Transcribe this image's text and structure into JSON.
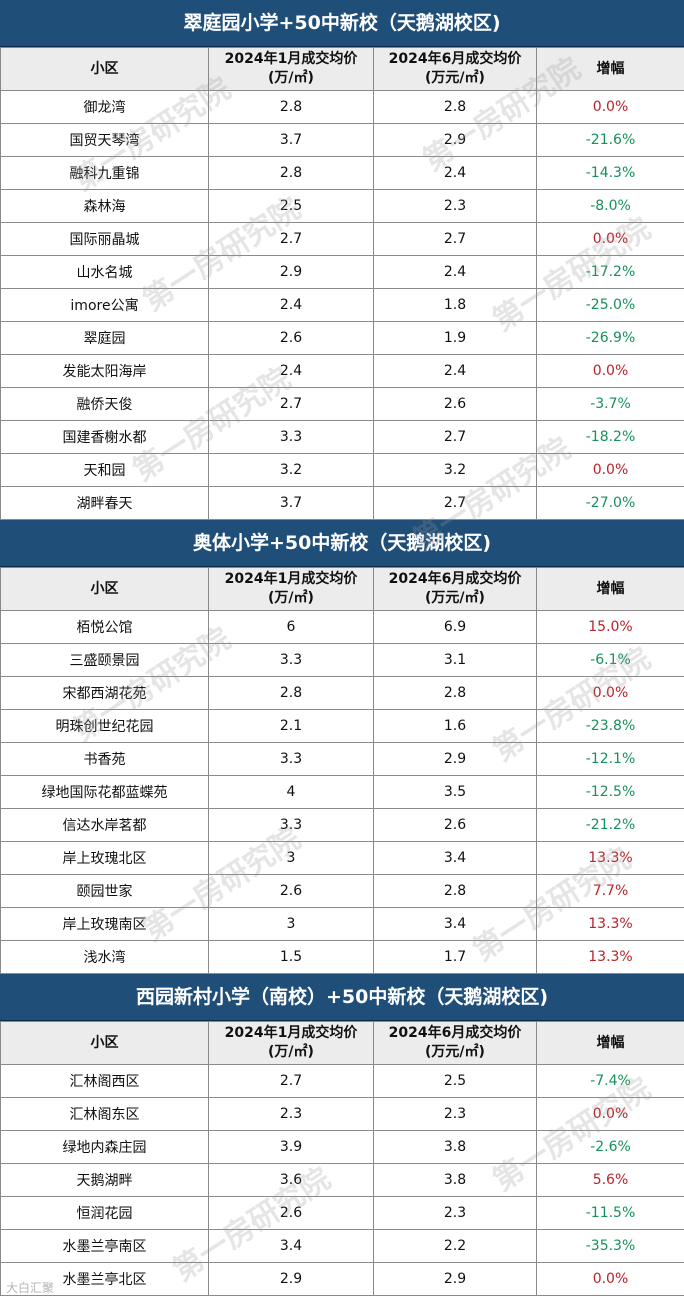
{
  "watermark": "第一房研究院",
  "brand": "大白汇聚",
  "headers": {
    "name": "小区",
    "jan_l1": "2024年1月成交均价",
    "jan_l2": "(万/㎡)",
    "jun_l1": "2024年6月成交均价",
    "jun_l2": "(万元/㎡)",
    "change": "增幅"
  },
  "sections": [
    {
      "title": "翠庭园小学+50中新校（天鹅湖校区)",
      "rows": [
        [
          "御龙湾",
          "2.8",
          "2.8",
          "0.0%"
        ],
        [
          "国贸天琴湾",
          "3.7",
          "2.9",
          "-21.6%"
        ],
        [
          "融科九重锦",
          "2.8",
          "2.4",
          "-14.3%"
        ],
        [
          "森林海",
          "2.5",
          "2.3",
          "-8.0%"
        ],
        [
          "国际丽晶城",
          "2.7",
          "2.7",
          "0.0%"
        ],
        [
          "山水名城",
          "2.9",
          "2.4",
          "-17.2%"
        ],
        [
          "imore公寓",
          "2.4",
          "1.8",
          "-25.0%"
        ],
        [
          "翠庭园",
          "2.6",
          "1.9",
          "-26.9%"
        ],
        [
          "发能太阳海岸",
          "2.4",
          "2.4",
          "0.0%"
        ],
        [
          "融侨天俊",
          "2.7",
          "2.6",
          "-3.7%"
        ],
        [
          "国建香榭水都",
          "3.3",
          "2.7",
          "-18.2%"
        ],
        [
          "天和园",
          "3.2",
          "3.2",
          "0.0%"
        ],
        [
          "湖畔春天",
          "3.7",
          "2.7",
          "-27.0%"
        ]
      ]
    },
    {
      "title": "奥体小学+50中新校（天鹅湖校区)",
      "rows": [
        [
          "栢悦公馆",
          "6",
          "6.9",
          "15.0%"
        ],
        [
          "三盛颐景园",
          "3.3",
          "3.1",
          "-6.1%"
        ],
        [
          "宋都西湖花苑",
          "2.8",
          "2.8",
          "0.0%"
        ],
        [
          "明珠创世纪花园",
          "2.1",
          "1.6",
          "-23.8%"
        ],
        [
          "书香苑",
          "3.3",
          "2.9",
          "-12.1%"
        ],
        [
          "绿地国际花都蓝蝶苑",
          "4",
          "3.5",
          "-12.5%"
        ],
        [
          "信达水岸茗都",
          "3.3",
          "2.6",
          "-21.2%"
        ],
        [
          "岸上玫瑰北区",
          "3",
          "3.4",
          "13.3%"
        ],
        [
          "颐园世家",
          "2.6",
          "2.8",
          "7.7%"
        ],
        [
          "岸上玫瑰南区",
          "3",
          "3.4",
          "13.3%"
        ],
        [
          "浅水湾",
          "1.5",
          "1.7",
          "13.3%"
        ]
      ]
    },
    {
      "title": "西园新村小学（南校）+50中新校（天鹅湖校区)",
      "rows": [
        [
          "汇林阁西区",
          "2.7",
          "2.5",
          "-7.4%"
        ],
        [
          "汇林阁东区",
          "2.3",
          "2.3",
          "0.0%"
        ],
        [
          "绿地内森庄园",
          "3.9",
          "3.8",
          "-2.6%"
        ],
        [
          "天鹅湖畔",
          "3.6",
          "3.8",
          "5.6%"
        ],
        [
          "恒润花园",
          "2.6",
          "2.3",
          "-11.5%"
        ],
        [
          "水墨兰亭南区",
          "3.4",
          "2.2",
          "-35.3%"
        ],
        [
          "水墨兰亭北区",
          "2.9",
          "2.9",
          "0.0%"
        ]
      ]
    }
  ]
}
